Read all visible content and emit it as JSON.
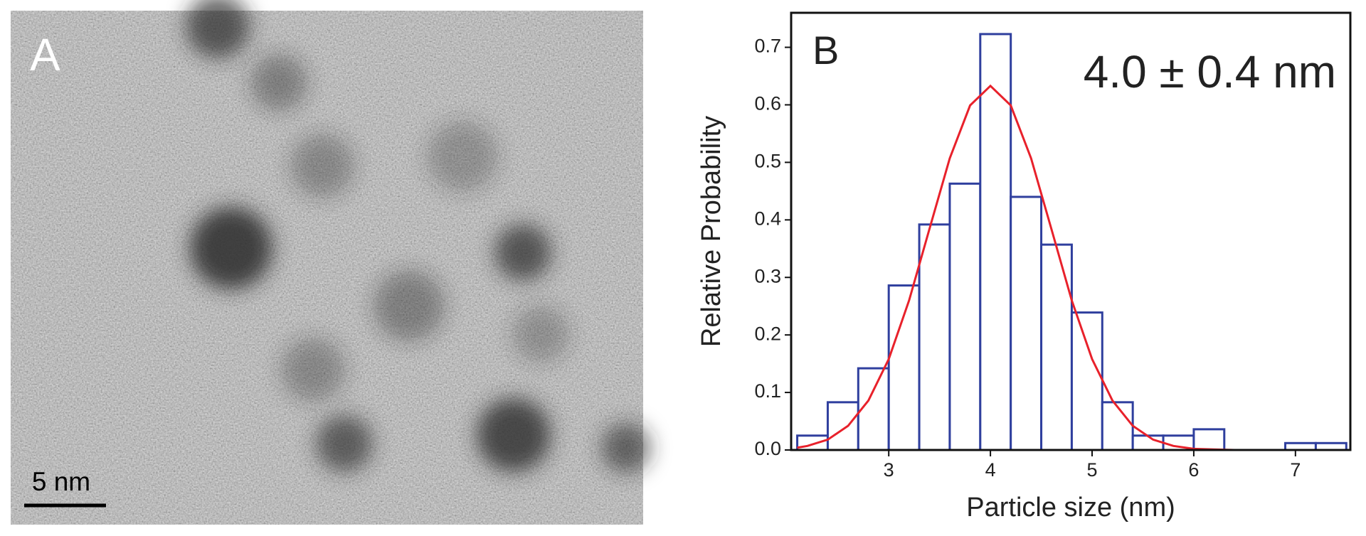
{
  "panel_a": {
    "label": "A",
    "scale_bar": "5 nm"
  },
  "chart_data": {
    "type": "histogram",
    "label": "B",
    "annotation": "4.0 ± 0.4 nm",
    "xlabel": "Particle size (nm)",
    "ylabel": "Relative Probability",
    "bins": [
      2.1,
      2.4,
      2.7,
      3.0,
      3.3,
      3.6,
      3.9,
      4.2,
      4.5,
      4.8,
      5.1,
      5.4,
      5.7,
      6.0,
      6.3,
      6.6,
      6.9,
      7.2,
      7.5
    ],
    "values": [
      0.025,
      0.083,
      0.142,
      0.286,
      0.392,
      0.463,
      0.723,
      0.44,
      0.357,
      0.239,
      0.083,
      0.025,
      0.025,
      0.036,
      0,
      0,
      0.012,
      0.012
    ],
    "color": "#2f3f9e",
    "fit": {
      "x": [
        2.1,
        2.2,
        2.4,
        2.6,
        2.8,
        3.0,
        3.2,
        3.4,
        3.6,
        3.8,
        4.0,
        4.2,
        4.4,
        4.6,
        4.8,
        5.0,
        5.2,
        5.4,
        5.6,
        5.8,
        6.0,
        6.2,
        6.4,
        6.8,
        7.2,
        7.5
      ],
      "values": [
        0.004,
        0.007,
        0.018,
        0.042,
        0.086,
        0.158,
        0.26,
        0.384,
        0.507,
        0.599,
        0.633,
        0.599,
        0.507,
        0.384,
        0.26,
        0.158,
        0.086,
        0.042,
        0.018,
        0.007,
        0.002,
        0.001,
        0,
        0,
        0,
        0
      ],
      "color": "#e8212b"
    },
    "xlim": [
      2.04,
      7.54
    ],
    "ylim": [
      0,
      0.76
    ],
    "xticks": [
      3,
      4,
      5,
      6,
      7
    ],
    "yticks": [
      {
        "value": 0,
        "label": "0.0"
      },
      0.1,
      0.2,
      0.3,
      0.4,
      0.5,
      0.6,
      0.7
    ]
  }
}
